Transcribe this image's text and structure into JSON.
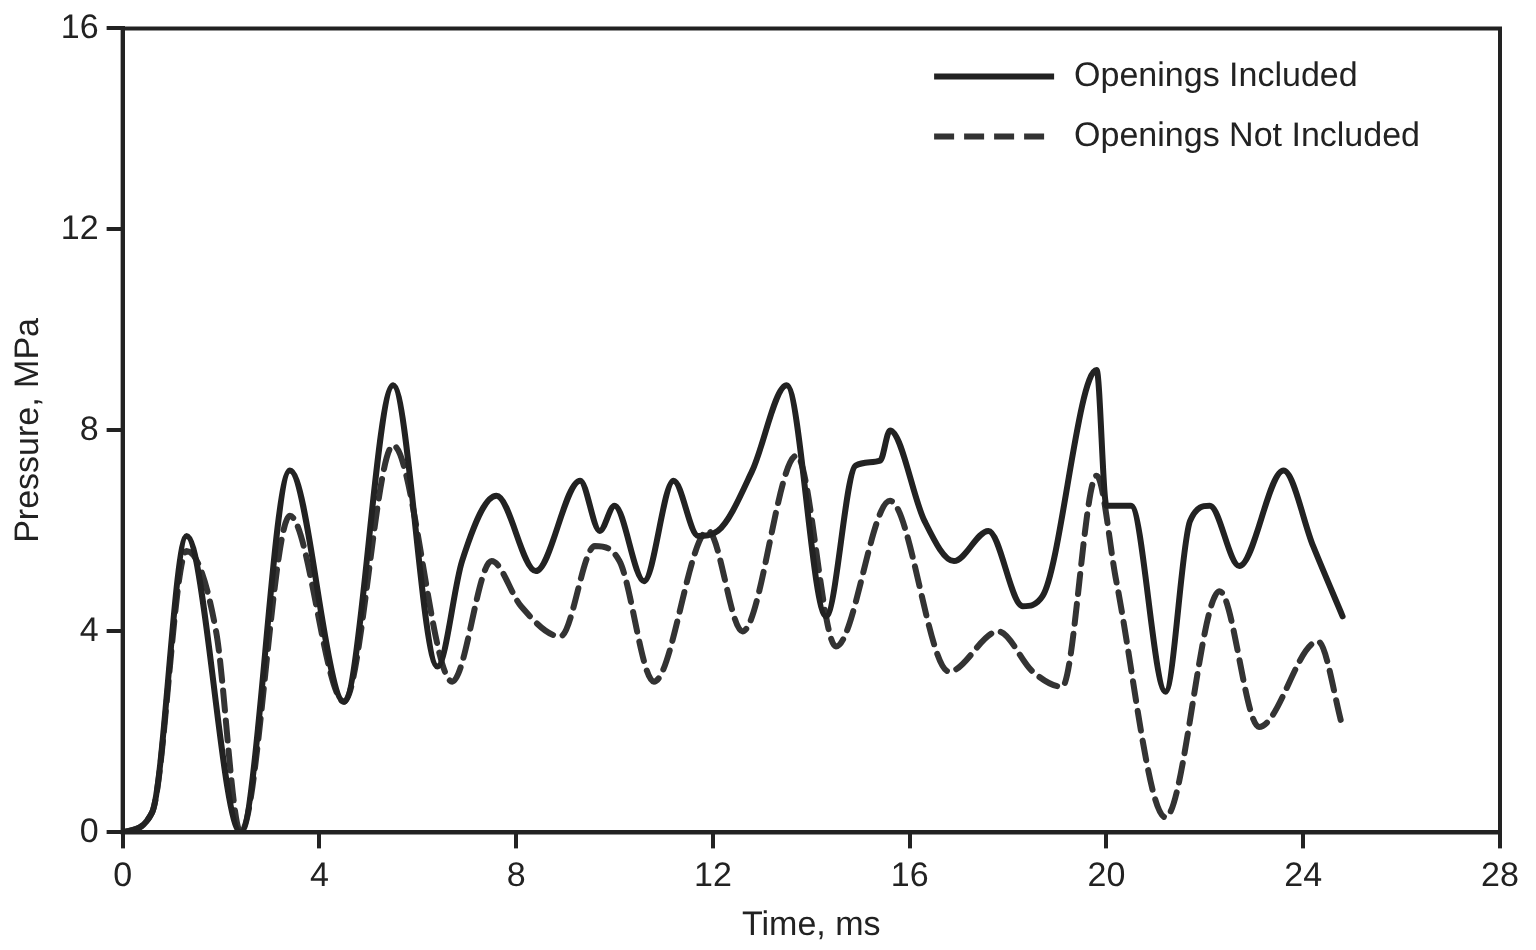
{
  "chart_data": {
    "type": "line",
    "xlabel": "Time, ms",
    "ylabel": "Pressure, MPa",
    "xlim": [
      0,
      28
    ],
    "xticks": [
      0,
      4,
      8,
      12,
      16,
      20,
      24,
      28
    ],
    "ylim": [
      0,
      16
    ],
    "yticks": [
      0,
      4,
      8,
      12,
      16
    ],
    "grid": false,
    "legend": "top right",
    "marker": "none",
    "series": [
      {
        "name": "Openings Included",
        "color": "#222222",
        "line_style": "solid",
        "x": [
          0,
          0.6,
          1.3,
          2.4,
          3.4,
          4.5,
          5.5,
          6.4,
          6.9,
          7.6,
          8.4,
          9.3,
          9.7,
          10.0,
          10.6,
          11.2,
          11.7,
          12.1,
          12.8,
          13.5,
          14.3,
          14.9,
          15.4,
          15.6,
          16.3,
          16.9,
          17.6,
          18.3,
          18.7,
          19.8,
          20.0,
          20.5,
          21.2,
          21.7,
          22.1,
          22.7,
          23.6,
          24.2,
          24.8
        ],
        "values": [
          0,
          0.4,
          5.9,
          0,
          7.2,
          2.6,
          8.9,
          3.3,
          5.4,
          6.7,
          5.2,
          7.0,
          6.0,
          6.5,
          5.0,
          7.0,
          5.9,
          6.0,
          7.2,
          8.9,
          4.3,
          7.3,
          7.4,
          8.0,
          6.2,
          5.4,
          6.0,
          4.5,
          4.7,
          9.2,
          6.5,
          6.5,
          2.8,
          6.2,
          6.5,
          5.3,
          7.2,
          5.7,
          4.3
        ]
      },
      {
        "name": "Openings Not Included",
        "color": "#333333",
        "line_style": "dashed",
        "x": [
          0,
          0.6,
          1.3,
          1.9,
          2.4,
          3.4,
          4.5,
          5.5,
          6.7,
          7.5,
          8.1,
          8.9,
          9.6,
          10.1,
          10.8,
          11.9,
          12.6,
          13.7,
          14.5,
          15.6,
          16.8,
          17.8,
          18.5,
          19.1,
          19.8,
          20.2,
          21.2,
          22.3,
          23.1,
          24.3,
          24.8
        ],
        "values": [
          0,
          0.4,
          5.6,
          4.0,
          0,
          6.3,
          2.6,
          7.7,
          3.0,
          5.4,
          4.5,
          3.9,
          5.7,
          5.4,
          3.0,
          6.0,
          4.0,
          7.5,
          3.7,
          6.6,
          3.2,
          4.0,
          3.2,
          2.9,
          7.1,
          5.0,
          0.3,
          4.8,
          2.1,
          3.8,
          2.1
        ]
      }
    ]
  }
}
